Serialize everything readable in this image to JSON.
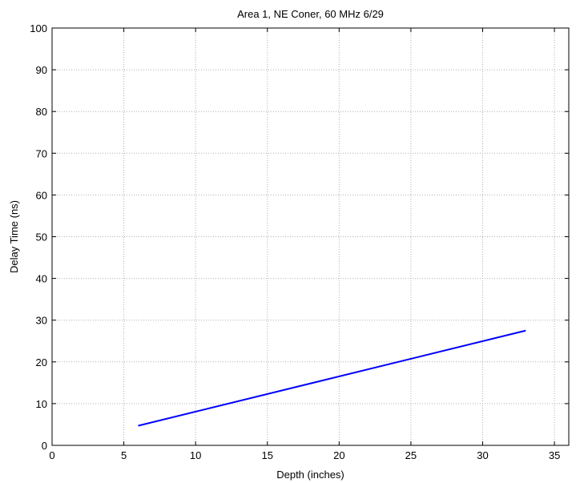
{
  "chart_data": {
    "type": "line",
    "title": "Area 1, NE Coner, 60 MHz 6/29",
    "xlabel": "Depth (inches)",
    "ylabel": "Delay Time (ns)",
    "xlim": [
      0,
      36
    ],
    "ylim": [
      0,
      100
    ],
    "xticks": [
      0,
      5,
      10,
      15,
      20,
      25,
      30,
      35
    ],
    "yticks": [
      0,
      10,
      20,
      30,
      40,
      50,
      60,
      70,
      80,
      90,
      100
    ],
    "grid": true,
    "series": [
      {
        "color": "#0000ff",
        "x": [
          6,
          33
        ],
        "y": [
          4.7,
          27.5
        ]
      }
    ]
  }
}
